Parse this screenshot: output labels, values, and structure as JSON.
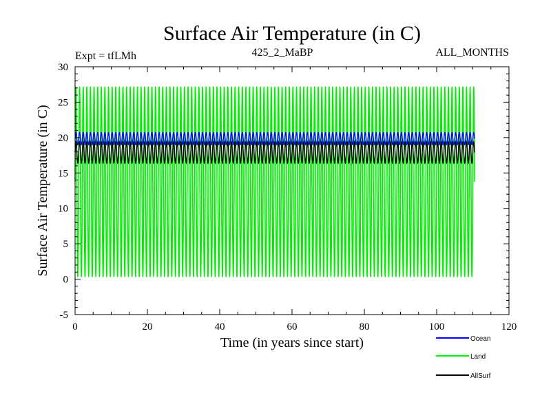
{
  "chart_data": {
    "type": "line",
    "title": "Surface Air Temperature (in C)",
    "subtitle_left": "Expt = tfLMh",
    "subtitle_center": "425_2_MaBP",
    "subtitle_right": "ALL_MONTHS",
    "xlabel": "Time (in years since start)",
    "ylabel": "Surface Air Temperature (in C)",
    "xlim": [
      0,
      120
    ],
    "ylim": [
      -5,
      30
    ],
    "xticks": [
      0,
      20,
      40,
      60,
      80,
      100,
      120
    ],
    "yticks": [
      -5,
      0,
      5,
      10,
      15,
      20,
      25,
      30
    ],
    "grid": false,
    "x_end": 110.5,
    "cycles_per_year": 1,
    "series": [
      {
        "name": "Ocean",
        "color": "#0000ff",
        "min": 19.0,
        "max": 20.7
      },
      {
        "name": "Land",
        "color": "#00ee00",
        "min": 0.3,
        "max": 27.2
      },
      {
        "name": "AllSurf",
        "color": "#000000",
        "min": 16.4,
        "max": 19.4
      }
    ]
  }
}
